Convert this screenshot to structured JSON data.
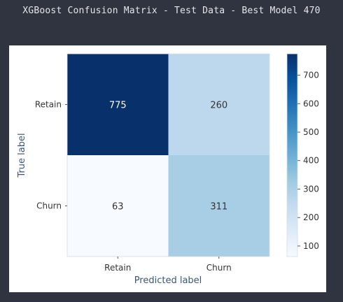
{
  "page": {
    "title": "XGBoost Confusion Matrix - Test Data - Best Model 470"
  },
  "chart_data": {
    "type": "heatmap",
    "title": "XGBoost Confusion Matrix - Test Data - Best Model 470",
    "xlabel": "Predicted label",
    "ylabel": "True label",
    "x_categories": [
      "Retain",
      "Churn"
    ],
    "y_categories": [
      "Retain",
      "Churn"
    ],
    "matrix": [
      [
        775,
        260
      ],
      [
        63,
        311
      ]
    ],
    "colormap": "Blues",
    "colorbar": {
      "range": [
        63,
        775
      ],
      "ticks": [
        100,
        200,
        300,
        400,
        500,
        600,
        700
      ]
    },
    "colors": {
      "low": "#f7fbff",
      "high": "#08306b",
      "text_dark": "#333333",
      "text_light": "#ffffff"
    },
    "grid": false
  }
}
